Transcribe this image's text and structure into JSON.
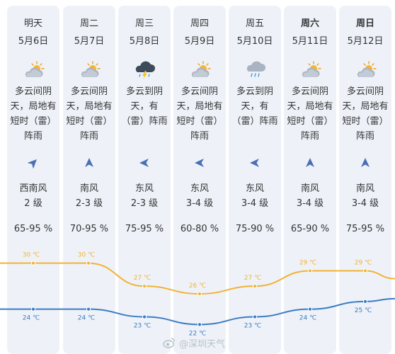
{
  "days": [
    {
      "day": "明天",
      "date": "5月6日",
      "icon": "cloudy-sun-icon",
      "desc": "多云间阴\n天，局地有\n短时（雷）\n阵雨",
      "wind_dir_icon": "arrow-northeast-icon",
      "wind_dir": "西南风",
      "wind_level": "2 级",
      "humidity": "65-95 %",
      "high": "30 ℃",
      "low": "24 ℃"
    },
    {
      "day": "周二",
      "date": "5月7日",
      "icon": "cloudy-sun-icon",
      "desc": "多云间阴\n天，局地有\n短时（雷）\n阵雨",
      "wind_dir_icon": "arrow-north-icon",
      "wind_dir": "南风",
      "wind_level": "2-3 级",
      "humidity": "70-95 %",
      "high": "30 ℃",
      "low": "24 ℃"
    },
    {
      "day": "周三",
      "date": "5月8日",
      "icon": "thunderstorm-icon",
      "desc": "多云到阴\n天，有\n（雷）阵雨",
      "wind_dir_icon": "arrow-west-icon",
      "wind_dir": "东风",
      "wind_level": "2-3 级",
      "humidity": "75-95 %",
      "high": "27 ℃",
      "low": "23 ℃"
    },
    {
      "day": "周四",
      "date": "5月9日",
      "icon": "cloudy-sun-icon",
      "desc": "多云间阴\n天，局地有\n短时（雷）\n阵雨",
      "wind_dir_icon": "arrow-west-icon",
      "wind_dir": "东风",
      "wind_level": "3-4 级",
      "humidity": "60-80 %",
      "high": "26 ℃",
      "low": "22 ℃"
    },
    {
      "day": "周五",
      "date": "5月10日",
      "icon": "cloud-rain-icon",
      "desc": "多云到阴\n天，有\n（雷）阵雨",
      "wind_dir_icon": "arrow-west-icon",
      "wind_dir": "东风",
      "wind_level": "3-4 级",
      "humidity": "75-90 %",
      "high": "27 ℃",
      "low": "23 ℃"
    },
    {
      "day": "周六",
      "date": "5月11日",
      "icon": "cloudy-sun-icon",
      "desc": "多云间阴\n天，局地有\n短时（雷）\n阵雨",
      "wind_dir_icon": "arrow-north-icon",
      "wind_dir": "南风",
      "wind_level": "3-4 级",
      "humidity": "65-90 %",
      "high": "29 ℃",
      "low": "24 ℃"
    },
    {
      "day": "周日",
      "date": "5月12日",
      "icon": "cloudy-sun-icon",
      "desc": "多云间阴\n天，局地有\n短时（雷）\n阵雨",
      "wind_dir_icon": "arrow-north-icon",
      "wind_dir": "南风",
      "wind_level": "3-4 级",
      "humidity": "75-95 %",
      "high": "29 ℃",
      "low": "25 ℃"
    }
  ],
  "chart_data": {
    "type": "line",
    "categories": [
      "5月6日",
      "5月7日",
      "5月8日",
      "5月9日",
      "5月10日",
      "5月11日",
      "5月12日"
    ],
    "series": [
      {
        "values": [
          30,
          30,
          27,
          26,
          27,
          29,
          29
        ],
        "color": "#f2b233"
      },
      {
        "values": [
          24,
          24,
          23,
          22,
          23,
          24,
          25
        ],
        "color": "#3a7bc4"
      }
    ],
    "unit": "℃"
  },
  "colors": {
    "high_line": "#f2b233",
    "low_line": "#3a7bc4",
    "card_bg": "#eef2f8",
    "arrow": "#4a6fb5"
  },
  "watermark": {
    "text": "@深圳天气",
    "icon": "weibo-icon"
  }
}
